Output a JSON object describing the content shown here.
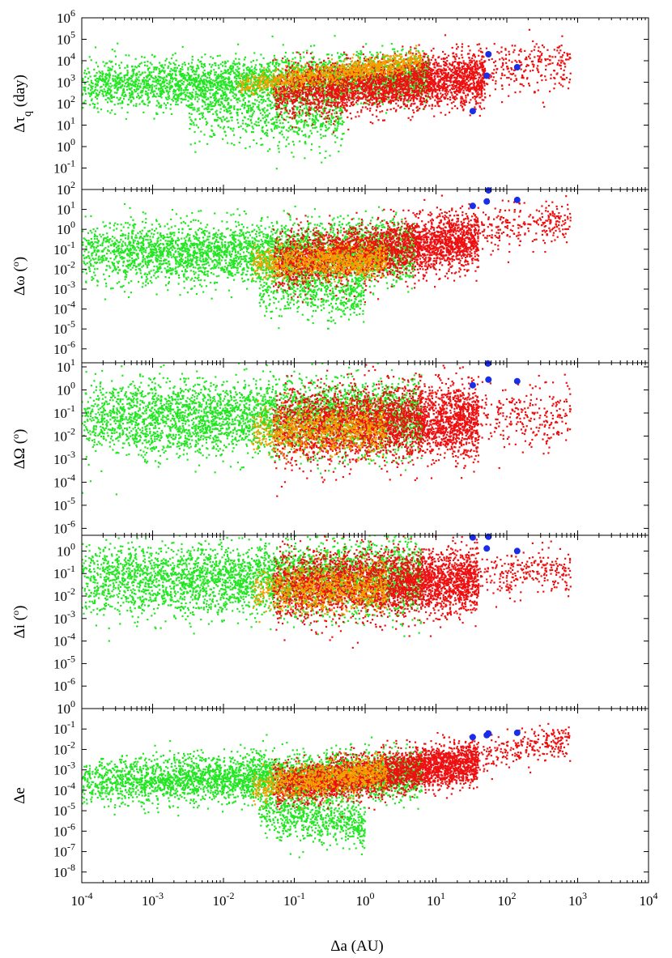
{
  "figure": {
    "xlabel": "Δa (AU)"
  },
  "colors": {
    "green": "#22e622",
    "orange": "#f5a000",
    "red": "#ee1010",
    "blue": "#1a2ee8",
    "frame": "#000000"
  },
  "chart_data": [
    {
      "type": "scatter",
      "ylabel": "Δτq (day)",
      "x_scale": "log",
      "y_scale": "log",
      "xlim": [
        0.0001,
        10000
      ],
      "ylim": [
        0.01,
        1000000
      ],
      "x_ticks": [
        {
          "base": "10",
          "exp": "-4"
        },
        {
          "base": "10",
          "exp": "-3"
        },
        {
          "base": "10",
          "exp": "-2"
        },
        {
          "base": "10",
          "exp": "-1"
        },
        {
          "base": "10",
          "exp": "0"
        },
        {
          "base": "10",
          "exp": "1"
        },
        {
          "base": "10",
          "exp": "2"
        },
        {
          "base": "10",
          "exp": "3"
        },
        {
          "base": "10",
          "exp": "4"
        }
      ],
      "y_ticks": [
        {
          "base": "10",
          "exp": "-1",
          "v": 0.1
        },
        {
          "base": "10",
          "exp": "0",
          "v": 1
        },
        {
          "base": "10",
          "exp": "1",
          "v": 10
        },
        {
          "base": "10",
          "exp": "2",
          "v": 100
        },
        {
          "base": "10",
          "exp": "3",
          "v": 1000
        },
        {
          "base": "10",
          "exp": "4",
          "v": 10000
        },
        {
          "base": "10",
          "exp": "5",
          "v": 100000
        },
        {
          "base": "10",
          "exp": "6",
          "v": 1000000
        }
      ],
      "clouds": [
        {
          "color": "green",
          "n": 3400,
          "x_log": [
            -4,
            0.9
          ],
          "y_log_center": [
            2.8,
            3.3
          ],
          "y_log_spread": 0.55,
          "seed": 11
        },
        {
          "color": "green",
          "n": 700,
          "x_log": [
            -2.5,
            -0.3
          ],
          "y_log_center": [
            1.6,
            1.2
          ],
          "y_log_spread": 0.7,
          "seed": 12
        },
        {
          "color": "red",
          "n": 3000,
          "x_log": [
            -1.3,
            1.7
          ],
          "y_log_center": [
            2.5,
            3.2
          ],
          "y_log_spread": 0.6,
          "seed": 13
        },
        {
          "color": "red",
          "n": 250,
          "x_log": [
            1.7,
            2.9
          ],
          "y_log_center": [
            3.6,
            3.9
          ],
          "y_log_spread": 0.6,
          "seed": 14
        },
        {
          "color": "orange",
          "n": 800,
          "x_log": [
            -1.8,
            0.8
          ],
          "y_log_center": [
            2.8,
            4.0
          ],
          "y_log_spread": 0.25,
          "seed": 15
        }
      ],
      "blue_points": [
        [
          55,
          20000
        ],
        [
          52,
          2000
        ],
        [
          140,
          5000
        ],
        [
          33,
          45
        ]
      ]
    },
    {
      "type": "scatter",
      "ylabel": "Δω (°)",
      "x_scale": "log",
      "y_scale": "log",
      "xlim": [
        0.0001,
        10000
      ],
      "ylim": [
        2e-07,
        100
      ],
      "x_ticks": [],
      "y_ticks": [
        {
          "base": "10",
          "exp": "-6",
          "v": 1e-06
        },
        {
          "base": "10",
          "exp": "-5",
          "v": 1e-05
        },
        {
          "base": "10",
          "exp": "-4",
          "v": 0.0001
        },
        {
          "base": "10",
          "exp": "-3",
          "v": 0.001
        },
        {
          "base": "10",
          "exp": "-2",
          "v": 0.01
        },
        {
          "base": "10",
          "exp": "-1",
          "v": 0.1
        },
        {
          "base": "10",
          "exp": "0",
          "v": 1
        },
        {
          "base": "10",
          "exp": "1",
          "v": 10
        },
        {
          "base": "10",
          "exp": "2",
          "v": 100
        }
      ],
      "clouds": [
        {
          "color": "green",
          "n": 3600,
          "x_log": [
            -4,
            0.7
          ],
          "y_log_center": [
            -1.2,
            -1.1
          ],
          "y_log_spread": 0.75,
          "seed": 21
        },
        {
          "color": "green",
          "n": 600,
          "x_log": [
            -1.5,
            0.0
          ],
          "y_log_center": [
            -2.8,
            -3.2
          ],
          "y_log_spread": 0.7,
          "seed": 22
        },
        {
          "color": "red",
          "n": 3000,
          "x_log": [
            -1.3,
            1.6
          ],
          "y_log_center": [
            -1.6,
            -0.5
          ],
          "y_log_spread": 0.7,
          "seed": 23
        },
        {
          "color": "red",
          "n": 250,
          "x_log": [
            1.6,
            2.9
          ],
          "y_log_center": [
            0.0,
            0.4
          ],
          "y_log_spread": 0.6,
          "seed": 24
        },
        {
          "color": "orange",
          "n": 800,
          "x_log": [
            -1.6,
            0.3
          ],
          "y_log_center": [
            -1.7,
            -1.5
          ],
          "y_log_spread": 0.4,
          "seed": 25
        }
      ],
      "blue_points": [
        [
          33,
          15
        ],
        [
          52,
          25
        ],
        [
          55,
          90
        ],
        [
          140,
          30
        ]
      ]
    },
    {
      "type": "scatter",
      "ylabel": "ΔΩ (°)",
      "x_scale": "log",
      "y_scale": "log",
      "xlim": [
        0.0001,
        10000
      ],
      "ylim": [
        5e-07,
        15
      ],
      "x_ticks": [],
      "y_ticks": [
        {
          "base": "10",
          "exp": "-6",
          "v": 1e-06
        },
        {
          "base": "10",
          "exp": "-5",
          "v": 1e-05
        },
        {
          "base": "10",
          "exp": "-4",
          "v": 0.0001
        },
        {
          "base": "10",
          "exp": "-3",
          "v": 0.001
        },
        {
          "base": "10",
          "exp": "-2",
          "v": 0.01
        },
        {
          "base": "10",
          "exp": "-1",
          "v": 0.1
        },
        {
          "base": "10",
          "exp": "0",
          "v": 1
        },
        {
          "base": "10",
          "exp": "1",
          "v": 10
        }
      ],
      "clouds": [
        {
          "color": "green",
          "n": 3800,
          "x_log": [
            -4,
            0.8
          ],
          "y_log_center": [
            -1.2,
            -1.2
          ],
          "y_log_spread": 0.8,
          "seed": 31
        },
        {
          "color": "red",
          "n": 3200,
          "x_log": [
            -1.3,
            1.6
          ],
          "y_log_center": [
            -1.6,
            -1.3
          ],
          "y_log_spread": 0.8,
          "seed": 33
        },
        {
          "color": "red",
          "n": 250,
          "x_log": [
            1.6,
            2.9
          ],
          "y_log_center": [
            -1.3,
            -1.0
          ],
          "y_log_spread": 0.7,
          "seed": 34
        },
        {
          "color": "orange",
          "n": 700,
          "x_log": [
            -1.6,
            0.3
          ],
          "y_log_center": [
            -1.8,
            -1.7
          ],
          "y_log_spread": 0.5,
          "seed": 35
        }
      ],
      "blue_points": [
        [
          33,
          1.6
        ],
        [
          55,
          2.8
        ],
        [
          140,
          2.4
        ],
        [
          54,
          14
        ]
      ]
    },
    {
      "type": "scatter",
      "ylabel": "Δi (°)",
      "x_scale": "log",
      "y_scale": "log",
      "xlim": [
        0.0001,
        10000
      ],
      "ylim": [
        1e-07,
        5
      ],
      "x_ticks": [],
      "y_ticks": [
        {
          "base": "10",
          "exp": "-6",
          "v": 1e-06
        },
        {
          "base": "10",
          "exp": "-5",
          "v": 1e-05
        },
        {
          "base": "10",
          "exp": "-4",
          "v": 0.0001
        },
        {
          "base": "10",
          "exp": "-3",
          "v": 0.001
        },
        {
          "base": "10",
          "exp": "-2",
          "v": 0.01
        },
        {
          "base": "10",
          "exp": "-1",
          "v": 0.1
        },
        {
          "base": "10",
          "exp": "0",
          "v": 1
        }
      ],
      "clouds": [
        {
          "color": "green",
          "n": 3800,
          "x_log": [
            -4,
            0.8
          ],
          "y_log_center": [
            -1.3,
            -1.2
          ],
          "y_log_spread": 0.8,
          "seed": 41
        },
        {
          "color": "red",
          "n": 3200,
          "x_log": [
            -1.3,
            1.6
          ],
          "y_log_center": [
            -1.6,
            -1.3
          ],
          "y_log_spread": 0.75,
          "seed": 43
        },
        {
          "color": "red",
          "n": 250,
          "x_log": [
            1.6,
            2.9
          ],
          "y_log_center": [
            -1.0,
            -0.9
          ],
          "y_log_spread": 0.5,
          "seed": 44
        },
        {
          "color": "orange",
          "n": 700,
          "x_log": [
            -1.6,
            0.3
          ],
          "y_log_center": [
            -1.8,
            -1.6
          ],
          "y_log_spread": 0.5,
          "seed": 45
        }
      ],
      "blue_points": [
        [
          33,
          4.0
        ],
        [
          55,
          4.3
        ],
        [
          52,
          1.3
        ],
        [
          140,
          1.0
        ]
      ]
    },
    {
      "type": "scatter",
      "ylabel": "Δe",
      "x_scale": "log",
      "y_scale": "log",
      "xlim": [
        0.0001,
        10000
      ],
      "ylim": [
        3e-09,
        1
      ],
      "x_ticks": [],
      "y_ticks": [
        {
          "base": "10",
          "exp": "-8",
          "v": 1e-08
        },
        {
          "base": "10",
          "exp": "-7",
          "v": 1e-07
        },
        {
          "base": "10",
          "exp": "-6",
          "v": 1e-06
        },
        {
          "base": "10",
          "exp": "-5",
          "v": 1e-05
        },
        {
          "base": "10",
          "exp": "-4",
          "v": 0.0001
        },
        {
          "base": "10",
          "exp": "-3",
          "v": 0.001
        },
        {
          "base": "10",
          "exp": "-2",
          "v": 0.01
        },
        {
          "base": "10",
          "exp": "-1",
          "v": 0.1
        },
        {
          "base": "10",
          "exp": "0",
          "v": 1
        }
      ],
      "clouds": [
        {
          "color": "green",
          "n": 3600,
          "x_log": [
            -4,
            0.8
          ],
          "y_log_center": [
            -3.6,
            -3.2
          ],
          "y_log_spread": 0.55,
          "seed": 51
        },
        {
          "color": "green",
          "n": 700,
          "x_log": [
            -1.5,
            0.0
          ],
          "y_log_center": [
            -5.0,
            -5.6
          ],
          "y_log_spread": 0.6,
          "seed": 52
        },
        {
          "color": "red",
          "n": 3000,
          "x_log": [
            -1.3,
            1.6
          ],
          "y_log_center": [
            -3.8,
            -2.6
          ],
          "y_log_spread": 0.5,
          "seed": 53
        },
        {
          "color": "red",
          "n": 250,
          "x_log": [
            1.6,
            2.9
          ],
          "y_log_center": [
            -2.3,
            -1.5
          ],
          "y_log_spread": 0.45,
          "seed": 54
        },
        {
          "color": "orange",
          "n": 800,
          "x_log": [
            -1.6,
            0.3
          ],
          "y_log_center": [
            -3.8,
            -3.1
          ],
          "y_log_spread": 0.4,
          "seed": 55
        }
      ],
      "blue_points": [
        [
          33,
          0.04
        ],
        [
          52,
          0.05
        ],
        [
          55,
          0.06
        ],
        [
          140,
          0.065
        ]
      ]
    }
  ]
}
